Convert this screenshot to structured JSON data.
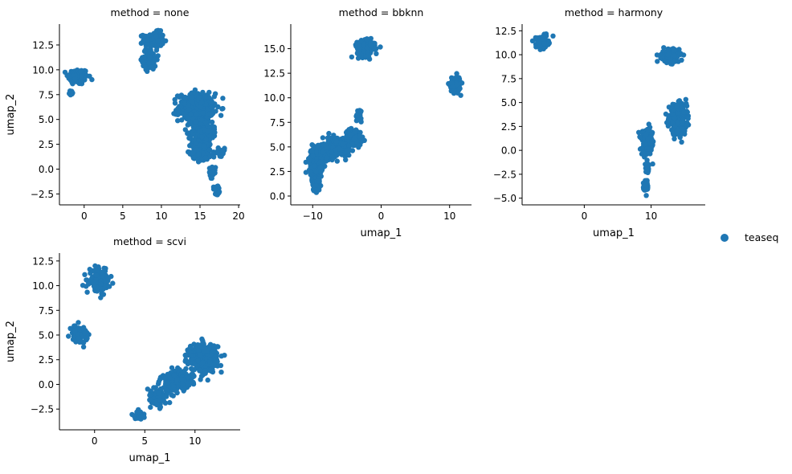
{
  "chart_data": {
    "type": "scatter",
    "facet_variable": "method",
    "series": [
      {
        "name": "teaseq",
        "color": "#1f77b4"
      }
    ],
    "legend": {
      "placement": "right",
      "labels": [
        "teaseq"
      ]
    },
    "grid": false,
    "panels": [
      {
        "title": "method = none",
        "xlabel": "",
        "ylabel": "umap_2",
        "xlim": [
          -3.2,
          20.2
        ],
        "ylim": [
          -3.6,
          14.6
        ],
        "xticks": [
          {
            "v": 0,
            "label": "0"
          },
          {
            "v": 5,
            "label": "5"
          },
          {
            "v": 10,
            "label": "10"
          },
          {
            "v": 15,
            "label": "15"
          },
          {
            "v": 20,
            "label": "20"
          }
        ],
        "yticks": [
          {
            "v": -2.5,
            "label": "−2.5"
          },
          {
            "v": 0,
            "label": "0.0"
          },
          {
            "v": 2.5,
            "label": "2.5"
          },
          {
            "v": 5,
            "label": "5.0"
          },
          {
            "v": 7.5,
            "label": "7.5"
          },
          {
            "v": 10,
            "label": "10.0"
          },
          {
            "v": 12.5,
            "label": "12.5"
          }
        ],
        "clusters": [
          {
            "cx": -0.8,
            "cy": 9.3,
            "sx": 1.3,
            "sy": 0.8,
            "n": 150
          },
          {
            "cx": -1.7,
            "cy": 7.7,
            "sx": 0.3,
            "sy": 0.4,
            "n": 10
          },
          {
            "cx": 9.0,
            "cy": 13.0,
            "sx": 1.3,
            "sy": 0.8,
            "n": 120
          },
          {
            "cx": 8.5,
            "cy": 11.0,
            "sx": 0.9,
            "sy": 1.0,
            "n": 70
          },
          {
            "cx": 14.5,
            "cy": 6.2,
            "sx": 2.3,
            "sy": 1.4,
            "n": 380
          },
          {
            "cx": 15.3,
            "cy": 3.8,
            "sx": 1.4,
            "sy": 1.4,
            "n": 260
          },
          {
            "cx": 15.2,
            "cy": 1.8,
            "sx": 1.3,
            "sy": 1.0,
            "n": 170
          },
          {
            "cx": 17.6,
            "cy": 1.7,
            "sx": 0.8,
            "sy": 0.4,
            "n": 30
          },
          {
            "cx": 17.2,
            "cy": -2.0,
            "sx": 0.5,
            "sy": 0.5,
            "n": 30
          },
          {
            "cx": 16.6,
            "cy": -0.3,
            "sx": 0.4,
            "sy": 0.6,
            "n": 18
          }
        ]
      },
      {
        "title": "method = bbknn",
        "xlabel": "umap_1",
        "ylabel": "",
        "xlim": [
          -13.2,
          13.2
        ],
        "ylim": [
          -0.9,
          17.5
        ],
        "xticks": [
          {
            "v": -10,
            "label": "−10"
          },
          {
            "v": 0,
            "label": "0"
          },
          {
            "v": 10,
            "label": "10"
          }
        ],
        "yticks": [
          {
            "v": 0,
            "label": "0.0"
          },
          {
            "v": 2.5,
            "label": "2.5"
          },
          {
            "v": 5,
            "label": "5.0"
          },
          {
            "v": 7.5,
            "label": "7.5"
          },
          {
            "v": 10,
            "label": "10.0"
          },
          {
            "v": 12.5,
            "label": "12.5"
          },
          {
            "v": 15,
            "label": "15.0"
          }
        ],
        "clusters": [
          {
            "cx": -2.2,
            "cy": 15.0,
            "sx": 1.3,
            "sy": 0.8,
            "n": 150
          },
          {
            "cx": 10.8,
            "cy": 11.4,
            "sx": 0.8,
            "sy": 0.8,
            "n": 110
          },
          {
            "cx": -9.5,
            "cy": 3.6,
            "sx": 1.0,
            "sy": 1.3,
            "n": 280
          },
          {
            "cx": -9.5,
            "cy": 1.3,
            "sx": 0.6,
            "sy": 0.8,
            "n": 80
          },
          {
            "cx": -6.5,
            "cy": 5.0,
            "sx": 2.0,
            "sy": 1.0,
            "n": 280
          },
          {
            "cx": -4.0,
            "cy": 6.0,
            "sx": 1.2,
            "sy": 0.8,
            "n": 110
          },
          {
            "cx": -3.2,
            "cy": 8.2,
            "sx": 0.5,
            "sy": 0.7,
            "n": 30
          }
        ]
      },
      {
        "title": "method = harmony",
        "xlabel": "umap_1",
        "ylabel": "",
        "xlim": [
          -9.3,
          18.1
        ],
        "ylim": [
          -5.7,
          13.2
        ],
        "xticks": [
          {
            "v": 0,
            "label": "0"
          },
          {
            "v": 10,
            "label": "10"
          }
        ],
        "yticks": [
          {
            "v": -5,
            "label": "−5.0"
          },
          {
            "v": -2.5,
            "label": "−2.5"
          },
          {
            "v": 0,
            "label": "0.0"
          },
          {
            "v": 2.5,
            "label": "2.5"
          },
          {
            "v": 5,
            "label": "5.0"
          },
          {
            "v": 7.5,
            "label": "7.5"
          },
          {
            "v": 10,
            "label": "10.0"
          },
          {
            "v": 12.5,
            "label": "12.5"
          }
        ],
        "clusters": [
          {
            "cx": -6.3,
            "cy": 11.3,
            "sx": 0.9,
            "sy": 0.6,
            "n": 130
          },
          {
            "cx": 12.9,
            "cy": 9.9,
            "sx": 1.3,
            "sy": 0.7,
            "n": 140
          },
          {
            "cx": 14.0,
            "cy": 3.2,
            "sx": 1.3,
            "sy": 1.5,
            "n": 320
          },
          {
            "cx": 9.5,
            "cy": 0.8,
            "sx": 0.9,
            "sy": 1.3,
            "n": 160
          },
          {
            "cx": 9.2,
            "cy": -3.8,
            "sx": 0.4,
            "sy": 0.7,
            "n": 40
          },
          {
            "cx": 9.5,
            "cy": -1.8,
            "sx": 0.3,
            "sy": 0.6,
            "n": 20
          }
        ]
      },
      {
        "title": "method = scvi",
        "xlabel": "umap_1",
        "ylabel": "umap_2",
        "xlim": [
          -3.5,
          14.5
        ],
        "ylim": [
          -4.6,
          13.3
        ],
        "xticks": [
          {
            "v": 0,
            "label": "0"
          },
          {
            "v": 5,
            "label": "5"
          },
          {
            "v": 10,
            "label": "10"
          }
        ],
        "yticks": [
          {
            "v": -2.5,
            "label": "−2.5"
          },
          {
            "v": 0,
            "label": "0.0"
          },
          {
            "v": 2.5,
            "label": "2.5"
          },
          {
            "v": 5,
            "label": "5.0"
          },
          {
            "v": 7.5,
            "label": "7.5"
          },
          {
            "v": 10,
            "label": "10.0"
          },
          {
            "v": 12.5,
            "label": "12.5"
          }
        ],
        "clusters": [
          {
            "cx": 0.5,
            "cy": 10.5,
            "sx": 1.0,
            "sy": 1.0,
            "n": 170
          },
          {
            "cx": -1.5,
            "cy": 5.2,
            "sx": 0.8,
            "sy": 0.8,
            "n": 90
          },
          {
            "cx": 10.8,
            "cy": 2.7,
            "sx": 1.4,
            "sy": 1.4,
            "n": 380
          },
          {
            "cx": 8.2,
            "cy": 0.3,
            "sx": 1.6,
            "sy": 1.0,
            "n": 180
          },
          {
            "cx": 6.2,
            "cy": -1.3,
            "sx": 1.0,
            "sy": 0.8,
            "n": 80
          },
          {
            "cx": 4.5,
            "cy": -3.1,
            "sx": 0.5,
            "sy": 0.4,
            "n": 40
          }
        ]
      }
    ]
  }
}
